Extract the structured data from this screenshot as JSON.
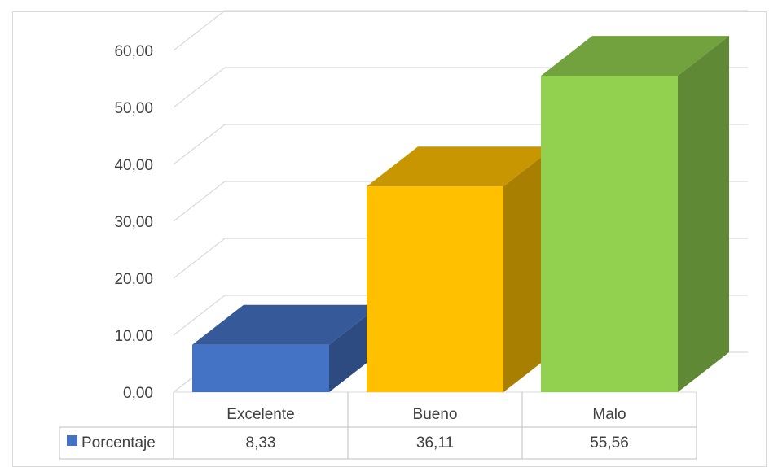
{
  "chart_data": {
    "type": "bar",
    "style": "3d-column-with-data-table",
    "categories": [
      "Excelente",
      "Bueno",
      "Malo"
    ],
    "series": [
      {
        "name": "Porcentaje",
        "values": [
          8.33,
          36.11,
          55.56
        ],
        "value_labels": [
          "8,33",
          "36,11",
          "55,56"
        ],
        "color": "#4472c4"
      }
    ],
    "bar_colors": [
      "#4472c4",
      "#ffc000",
      "#92d050"
    ],
    "ylim": [
      0,
      60
    ],
    "yticks": [
      0,
      10,
      20,
      30,
      40,
      50,
      60
    ],
    "ytick_labels": [
      "0,00",
      "10,00",
      "20,00",
      "30,00",
      "40,00",
      "50,00",
      "60,00"
    ],
    "grid": true,
    "legend": "data-table-left",
    "title": "",
    "xlabel": "",
    "ylabel": ""
  }
}
